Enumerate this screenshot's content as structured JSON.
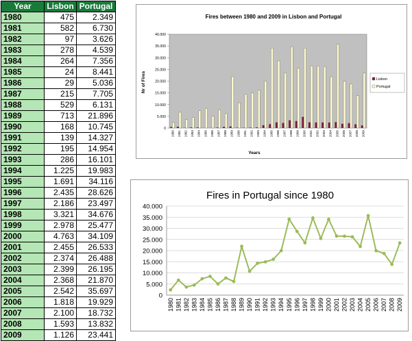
{
  "table": {
    "headers": [
      "Year",
      "Lisbon",
      "Portugal"
    ],
    "rows": [
      [
        "1980",
        "475",
        "2.349"
      ],
      [
        "1981",
        "582",
        "6.730"
      ],
      [
        "1982",
        "97",
        "3.626"
      ],
      [
        "1983",
        "278",
        "4.539"
      ],
      [
        "1984",
        "264",
        "7.356"
      ],
      [
        "1985",
        "24",
        "8.441"
      ],
      [
        "1986",
        "29",
        "5.036"
      ],
      [
        "1987",
        "215",
        "7.705"
      ],
      [
        "1988",
        "529",
        "6.131"
      ],
      [
        "1989",
        "713",
        "21.896"
      ],
      [
        "1990",
        "168",
        "10.745"
      ],
      [
        "1991",
        "139",
        "14.327"
      ],
      [
        "1992",
        "195",
        "14.954"
      ],
      [
        "1993",
        "286",
        "16.101"
      ],
      [
        "1994",
        "1.225",
        "19.983"
      ],
      [
        "1995",
        "1.691",
        "34.116"
      ],
      [
        "1996",
        "2.435",
        "28.626"
      ],
      [
        "1997",
        "2.186",
        "23.497"
      ],
      [
        "1998",
        "3.321",
        "34.676"
      ],
      [
        "1999",
        "2.978",
        "25.477"
      ],
      [
        "2000",
        "4.763",
        "34.109"
      ],
      [
        "2001",
        "2.455",
        "26.533"
      ],
      [
        "2002",
        "2.374",
        "26.488"
      ],
      [
        "2003",
        "2.399",
        "26.195"
      ],
      [
        "2004",
        "2.368",
        "21.870"
      ],
      [
        "2005",
        "2.542",
        "35.697"
      ],
      [
        "2006",
        "1.818",
        "19.929"
      ],
      [
        "2007",
        "2.100",
        "18.732"
      ],
      [
        "2008",
        "1.593",
        "13.832"
      ],
      [
        "2009",
        "1.126",
        "23.441"
      ]
    ]
  },
  "chart_data": [
    {
      "type": "bar",
      "title": "Fires between 1980 and 2009 in Lisbon and Portugal",
      "xlabel": "Years",
      "ylabel": "Nr of Fires",
      "ylim": [
        0,
        40000
      ],
      "yticks": [
        0,
        5000,
        10000,
        15000,
        20000,
        25000,
        30000,
        35000,
        40000
      ],
      "ytick_labels": [
        "0",
        "5.000",
        "10.000",
        "15.000",
        "20.000",
        "25.000",
        "30.000",
        "35.000",
        "40.000"
      ],
      "categories": [
        "1980",
        "1981",
        "1982",
        "1983",
        "1984",
        "1985",
        "1986",
        "1987",
        "1988",
        "1989",
        "1990",
        "1991",
        "1992",
        "1993",
        "1994",
        "1995",
        "1996",
        "1997",
        "1998",
        "1999",
        "2000",
        "2001",
        "2002",
        "2003",
        "2004",
        "2005",
        "2006",
        "2007",
        "2008",
        "2009"
      ],
      "legend_position": "right",
      "grid": false,
      "plot_bg": "#c0c0c0",
      "series": [
        {
          "name": "Lisbon",
          "color": "#7a1f3d",
          "values": [
            475,
            582,
            97,
            278,
            264,
            24,
            29,
            215,
            529,
            713,
            168,
            139,
            195,
            286,
            1225,
            1691,
            2435,
            2186,
            3321,
            2978,
            4763,
            2455,
            2374,
            2399,
            2368,
            2542,
            1818,
            2100,
            1593,
            1126
          ]
        },
        {
          "name": "Portugal",
          "color": "#fffad2",
          "values": [
            2349,
            6730,
            3626,
            4539,
            7356,
            8441,
            5036,
            7705,
            6131,
            21896,
            10745,
            14327,
            14954,
            16101,
            19983,
            34116,
            28626,
            23497,
            34676,
            25477,
            34109,
            26533,
            26488,
            26195,
            21870,
            35697,
            19929,
            18732,
            13832,
            23441
          ]
        }
      ]
    },
    {
      "type": "line",
      "title": "Fires in Portugal since 1980",
      "xlabel": "",
      "ylabel": "",
      "ylim": [
        0,
        40000
      ],
      "yticks": [
        0,
        5000,
        10000,
        15000,
        20000,
        25000,
        30000,
        35000,
        40000
      ],
      "ytick_labels": [
        "0",
        "5.000",
        "10.000",
        "15.000",
        "20.000",
        "25.000",
        "30.000",
        "35.000",
        "40.000"
      ],
      "categories": [
        "1980",
        "1981",
        "1982",
        "1983",
        "1984",
        "1985",
        "1986",
        "1987",
        "1988",
        "1989",
        "1990",
        "1991",
        "1992",
        "1993",
        "1994",
        "1995",
        "1996",
        "1997",
        "1998",
        "1999",
        "2000",
        "2001",
        "2002",
        "2003",
        "2004",
        "2005",
        "2006",
        "2007",
        "2008",
        "2009"
      ],
      "grid": true,
      "series": [
        {
          "name": "Portugal",
          "color": "#9bbb59",
          "values": [
            2349,
            6730,
            3626,
            4539,
            7356,
            8441,
            5036,
            7705,
            6131,
            21896,
            10745,
            14327,
            14954,
            16101,
            19983,
            34116,
            28626,
            23497,
            34676,
            25477,
            34109,
            26533,
            26488,
            26195,
            21870,
            35697,
            19929,
            18732,
            13832,
            23441
          ]
        }
      ]
    }
  ]
}
